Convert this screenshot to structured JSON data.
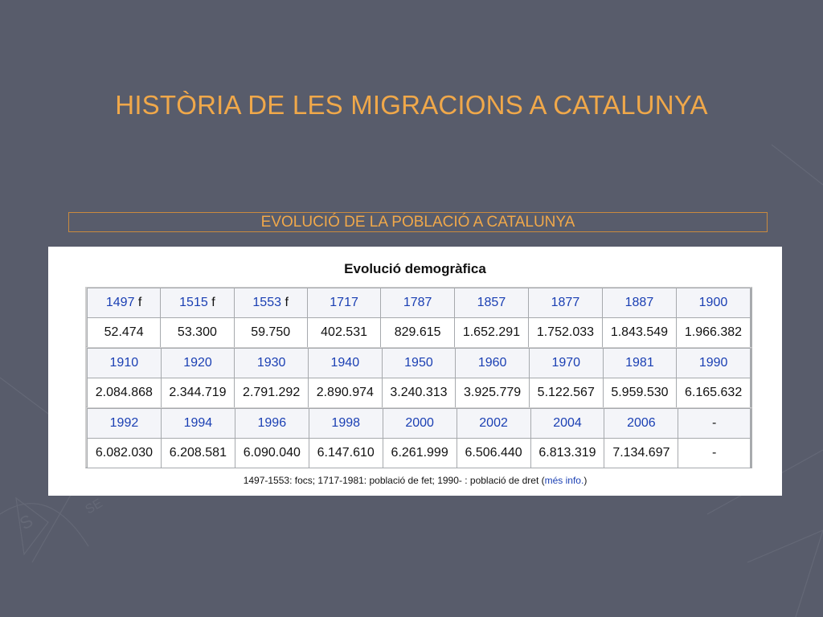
{
  "slide": {
    "title": "HISTÒRIA DE LES MIGRACIONS A CATALUNYA",
    "subtitle": "EVOLUCIÓ DE LA POBLACIÓ A CATALUNYA"
  },
  "table": {
    "title": "Evolució demogràfica",
    "blocks": [
      {
        "years": [
          {
            "year": "1497",
            "suffix": "f"
          },
          {
            "year": "1515",
            "suffix": "f"
          },
          {
            "year": "1553",
            "suffix": "f"
          },
          {
            "year": "1717",
            "suffix": ""
          },
          {
            "year": "1787",
            "suffix": ""
          },
          {
            "year": "1857",
            "suffix": ""
          },
          {
            "year": "1877",
            "suffix": ""
          },
          {
            "year": "1887",
            "suffix": ""
          },
          {
            "year": "1900",
            "suffix": ""
          }
        ],
        "values": [
          "52.474",
          "53.300",
          "59.750",
          "402.531",
          "829.615",
          "1.652.291",
          "1.752.033",
          "1.843.549",
          "1.966.382"
        ]
      },
      {
        "years": [
          {
            "year": "1910",
            "suffix": ""
          },
          {
            "year": "1920",
            "suffix": ""
          },
          {
            "year": "1930",
            "suffix": ""
          },
          {
            "year": "1940",
            "suffix": ""
          },
          {
            "year": "1950",
            "suffix": ""
          },
          {
            "year": "1960",
            "suffix": ""
          },
          {
            "year": "1970",
            "suffix": ""
          },
          {
            "year": "1981",
            "suffix": ""
          },
          {
            "year": "1990",
            "suffix": ""
          }
        ],
        "values": [
          "2.084.868",
          "2.344.719",
          "2.791.292",
          "2.890.974",
          "3.240.313",
          "3.925.779",
          "5.122.567",
          "5.959.530",
          "6.165.632"
        ]
      },
      {
        "years": [
          {
            "year": "1992",
            "suffix": ""
          },
          {
            "year": "1994",
            "suffix": ""
          },
          {
            "year": "1996",
            "suffix": ""
          },
          {
            "year": "1998",
            "suffix": ""
          },
          {
            "year": "2000",
            "suffix": ""
          },
          {
            "year": "2002",
            "suffix": ""
          },
          {
            "year": "2004",
            "suffix": ""
          },
          {
            "year": "2006",
            "suffix": ""
          },
          {
            "year": "-",
            "suffix": ""
          }
        ],
        "values": [
          "6.082.030",
          "6.208.581",
          "6.090.040",
          "6.147.610",
          "6.261.999",
          "6.506.440",
          "6.813.319",
          "7.134.697",
          "-"
        ]
      }
    ],
    "footnote": {
      "text": "1497-1553: focs; 1717-1981: població de fet; 1990- : població de dret (",
      "link": "més info.",
      "close": ")"
    }
  },
  "colors": {
    "background": "#585c6b",
    "title": "#f0a84a",
    "year_link": "#1a3fb3"
  }
}
